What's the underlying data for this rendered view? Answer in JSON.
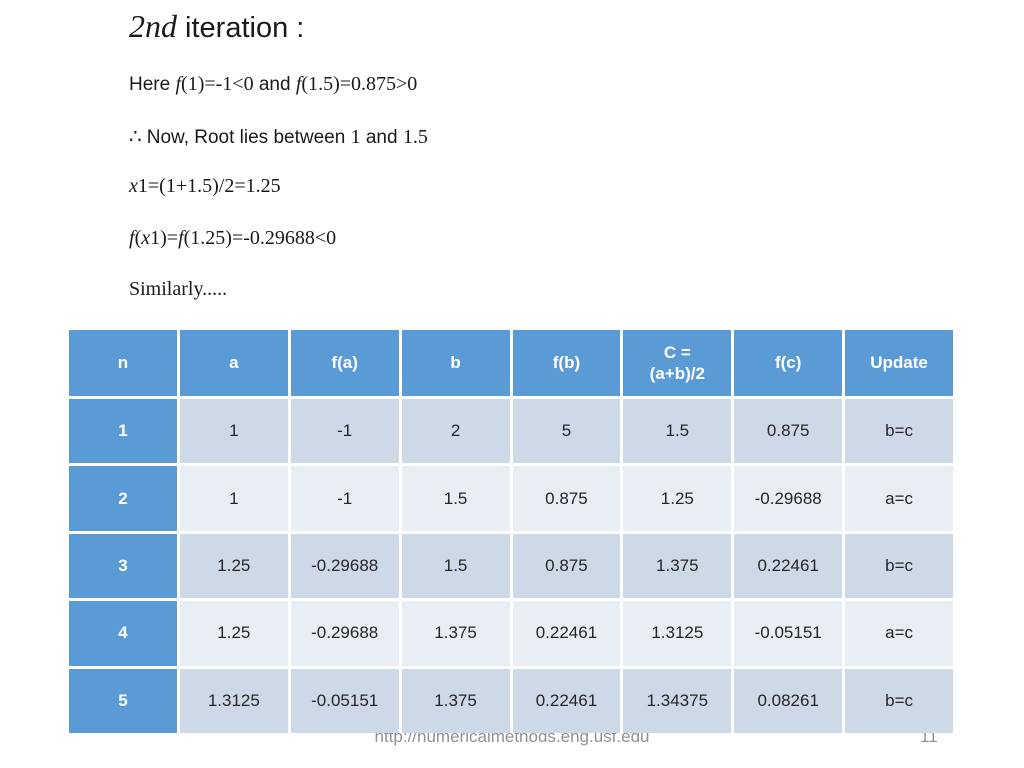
{
  "slide": {
    "title": {
      "ordinal": "2nd",
      "rest": " iteration :"
    },
    "body": {
      "line1": {
        "s1": "Here ",
        "s2": "f",
        "s3": "(1)=-1<0",
        "s4": " and ",
        "s5": "f",
        "s6": "(1.5)=0.875>0"
      },
      "line2": {
        "s1": "∴ ",
        "s2": "Now, Root lies between ",
        "s3": "1",
        "s4": " and ",
        "s5": "1.5"
      },
      "line3": {
        "s1": "x",
        "s2": "1=(1+1.5)/2=1.25"
      },
      "line4": {
        "s1": "f",
        "s2": "(",
        "s3": "x",
        "s4": "1)=",
        "s5": "f",
        "s6": "(1.25)=-0.29688<0"
      },
      "line5": {
        "s1": "Similarly....."
      }
    },
    "table": {
      "columns": [
        {
          "label": "n"
        },
        {
          "label": "a"
        },
        {
          "label": "f(a)"
        },
        {
          "label": "b"
        },
        {
          "label": "f(b)"
        },
        {
          "label": "C =",
          "label2": "(a+b)/2"
        },
        {
          "label": "f(c)"
        },
        {
          "label": "Update"
        }
      ],
      "rows": [
        {
          "n": "1",
          "a": "1",
          "fa": "-1",
          "b": "2",
          "fb": "5",
          "c": "1.5",
          "fc": "0.875",
          "update": "b=c"
        },
        {
          "n": "2",
          "a": "1",
          "fa": "-1",
          "b": "1.5",
          "fb": "0.875",
          "c": "1.25",
          "fc": "-0.29688",
          "update": "a=c"
        },
        {
          "n": "3",
          "a": "1.25",
          "fa": "-0.29688",
          "b": "1.5",
          "fb": "0.875",
          "c": "1.375",
          "fc": "0.22461",
          "update": "b=c"
        },
        {
          "n": "4",
          "a": "1.25",
          "fa": "-0.29688",
          "b": "1.375",
          "fb": "0.22461",
          "c": "1.3125",
          "fc": "-0.05151",
          "update": "a=c"
        },
        {
          "n": "5",
          "a": "1.3125",
          "fa": "-0.05151",
          "b": "1.375",
          "fb": "0.22461",
          "c": "1.34375",
          "fc": "0.08261",
          "update": "b=c"
        }
      ]
    },
    "footer": {
      "url": "http://numericalmethods.eng.usf.edu",
      "page": "11"
    },
    "colors": {
      "header_blue": "#5b9bd5",
      "band_dark": "#cdd9e7",
      "band_light": "#e9edf4"
    }
  }
}
